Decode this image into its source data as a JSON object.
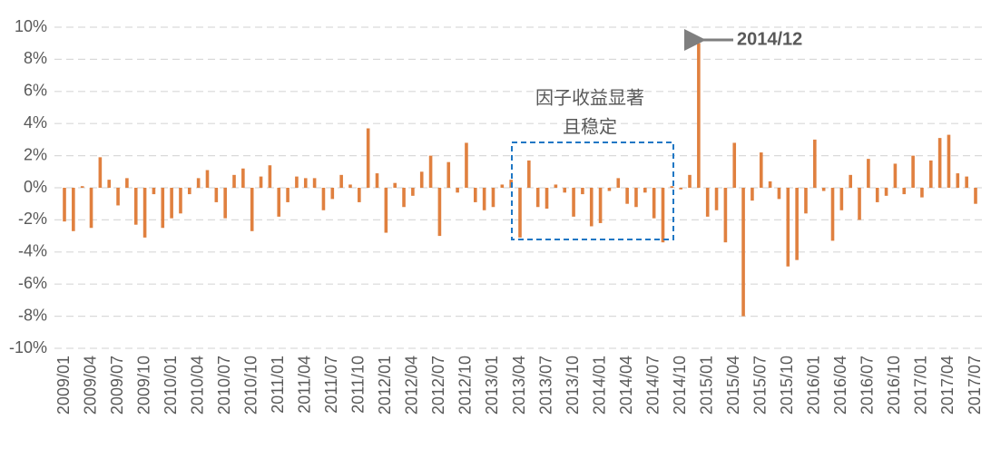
{
  "chart_data": {
    "type": "bar",
    "categories": [
      "2009/01",
      null,
      null,
      "2009/04",
      null,
      null,
      "2009/07",
      null,
      null,
      "2009/10",
      null,
      null,
      "2010/01",
      null,
      null,
      "2010/04",
      null,
      null,
      "2010/07",
      null,
      null,
      "2010/10",
      null,
      null,
      "2011/01",
      null,
      null,
      "2011/04",
      null,
      null,
      "2011/07",
      null,
      null,
      "2011/10",
      null,
      null,
      "2012/01",
      null,
      null,
      "2012/04",
      null,
      null,
      "2012/07",
      null,
      null,
      "2012/10",
      null,
      null,
      "2013/01",
      null,
      null,
      "2013/04",
      null,
      null,
      "2013/07",
      null,
      null,
      "2013/10",
      null,
      null,
      "2014/01",
      null,
      null,
      "2014/04",
      null,
      null,
      "2014/07",
      null,
      null,
      "2014/10",
      null,
      null,
      "2015/01",
      null,
      null,
      "2015/04",
      null,
      null,
      "2015/07",
      null,
      null,
      "2015/10",
      null,
      null,
      "2016/01",
      null,
      null,
      "2016/04",
      null,
      null,
      "2016/07",
      null,
      null,
      "2016/10",
      null,
      null,
      "2017/01",
      null,
      null,
      "2017/04",
      null,
      null,
      "2017/07"
    ],
    "values": [
      -2.1,
      -2.7,
      0.1,
      -2.5,
      1.9,
      0.5,
      -1.1,
      0.6,
      -2.3,
      -3.1,
      -0.4,
      -2.5,
      -1.9,
      -1.6,
      -0.4,
      0.6,
      1.1,
      -0.9,
      -1.9,
      0.8,
      1.2,
      -2.7,
      0.7,
      1.4,
      -1.8,
      -0.9,
      0.7,
      0.6,
      0.6,
      -1.4,
      -0.7,
      0.8,
      0.2,
      -0.9,
      3.7,
      0.9,
      -2.8,
      0.3,
      -1.2,
      -0.5,
      1.0,
      2.0,
      -3.0,
      1.6,
      -0.3,
      2.8,
      -0.9,
      -1.4,
      -1.2,
      0.2,
      0.5,
      -3.1,
      1.7,
      -1.2,
      -1.3,
      0.2,
      -0.3,
      -1.8,
      -0.4,
      -2.4,
      -2.2,
      -0.2,
      0.6,
      -1.0,
      -1.2,
      -0.3,
      -1.9,
      -3.4,
      0.1,
      -0.1,
      0.8,
      9.0,
      -1.8,
      -1.4,
      -3.4,
      2.8,
      -8.0,
      -0.8,
      2.2,
      0.4,
      -0.7,
      -4.9,
      -4.5,
      -1.6,
      3.0,
      -0.2,
      -3.3,
      -1.4,
      0.8,
      -2.0,
      1.8,
      -0.9,
      -0.5,
      1.5,
      -0.4,
      2.0,
      -0.6,
      1.7,
      3.1,
      3.3,
      0.9,
      0.7,
      -1.0
    ],
    "color": "#e0803f",
    "ylim": [
      -10,
      10
    ],
    "yticks": [
      {
        "value": -10,
        "label": "-10%"
      },
      {
        "value": -8,
        "label": "-8%"
      },
      {
        "value": -6,
        "label": "-6%"
      },
      {
        "value": -4,
        "label": "-4%"
      },
      {
        "value": -2,
        "label": "-2%"
      },
      {
        "value": 0,
        "label": "0%"
      },
      {
        "value": 2,
        "label": "2%"
      },
      {
        "value": 4,
        "label": "4%"
      },
      {
        "value": 6,
        "label": "6%"
      },
      {
        "value": 8,
        "label": "8%"
      },
      {
        "value": 10,
        "label": "10%"
      }
    ],
    "grid": true,
    "annotations": [
      {
        "text": "2014/12",
        "color": "#e0803f"
      },
      {
        "lines": [
          "因子收益显著",
          "且稳定"
        ],
        "color": "#1f77c4"
      }
    ]
  }
}
